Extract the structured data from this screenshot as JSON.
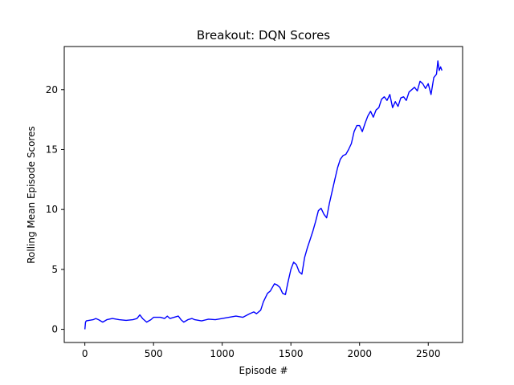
{
  "chart_data": {
    "type": "line",
    "title": "Breakout: DQN Scores",
    "xlabel": "Episode #",
    "ylabel": "Rolling Mean Episode Scores",
    "xlim": [
      -150,
      2750
    ],
    "ylim": [
      -1.1,
      23.6
    ],
    "xticks": [
      0,
      500,
      1000,
      1500,
      2000,
      2500
    ],
    "yticks": [
      0,
      5,
      10,
      15,
      20
    ],
    "grid": false,
    "series": [
      {
        "color": "#0000ff",
        "x": [
          0,
          5,
          10,
          30,
          60,
          80,
          100,
          130,
          160,
          200,
          250,
          300,
          350,
          380,
          400,
          420,
          450,
          480,
          500,
          520,
          550,
          580,
          600,
          620,
          650,
          680,
          700,
          720,
          750,
          780,
          800,
          850,
          900,
          950,
          1000,
          1050,
          1100,
          1150,
          1200,
          1230,
          1250,
          1280,
          1300,
          1330,
          1350,
          1380,
          1400,
          1420,
          1440,
          1460,
          1480,
          1500,
          1520,
          1540,
          1560,
          1580,
          1600,
          1620,
          1640,
          1660,
          1680,
          1700,
          1720,
          1740,
          1760,
          1780,
          1800,
          1820,
          1840,
          1860,
          1880,
          1900,
          1920,
          1940,
          1960,
          1980,
          2000,
          2020,
          2040,
          2060,
          2080,
          2100,
          2120,
          2140,
          2160,
          2180,
          2200,
          2220,
          2240,
          2260,
          2280,
          2300,
          2320,
          2340,
          2360,
          2380,
          2400,
          2420,
          2440,
          2460,
          2480,
          2500,
          2520,
          2540,
          2560,
          2570,
          2580,
          2590,
          2600
        ],
        "y": [
          0.0,
          0.6,
          0.7,
          0.75,
          0.8,
          0.9,
          0.8,
          0.6,
          0.8,
          0.9,
          0.8,
          0.75,
          0.8,
          0.9,
          1.2,
          0.9,
          0.6,
          0.8,
          1.0,
          1.0,
          1.0,
          0.9,
          1.1,
          0.9,
          1.0,
          1.1,
          0.8,
          0.6,
          0.8,
          0.9,
          0.8,
          0.7,
          0.85,
          0.8,
          0.9,
          1.0,
          1.1,
          1.0,
          1.3,
          1.45,
          1.3,
          1.6,
          2.3,
          3.0,
          3.2,
          3.8,
          3.7,
          3.5,
          3.0,
          2.9,
          4.0,
          5.0,
          5.6,
          5.4,
          4.8,
          4.6,
          6.0,
          6.8,
          7.5,
          8.2,
          9.0,
          9.9,
          10.1,
          9.6,
          9.3,
          10.5,
          11.5,
          12.5,
          13.5,
          14.2,
          14.5,
          14.6,
          15.0,
          15.5,
          16.5,
          17.0,
          17.0,
          16.5,
          17.2,
          17.8,
          18.2,
          17.7,
          18.3,
          18.5,
          19.2,
          19.4,
          19.1,
          19.6,
          18.5,
          19.0,
          18.6,
          19.3,
          19.4,
          19.1,
          19.8,
          20.0,
          20.2,
          19.9,
          20.7,
          20.5,
          20.1,
          20.5,
          19.6,
          21.0,
          21.3,
          22.4,
          21.6,
          21.9,
          21.6
        ]
      }
    ]
  }
}
